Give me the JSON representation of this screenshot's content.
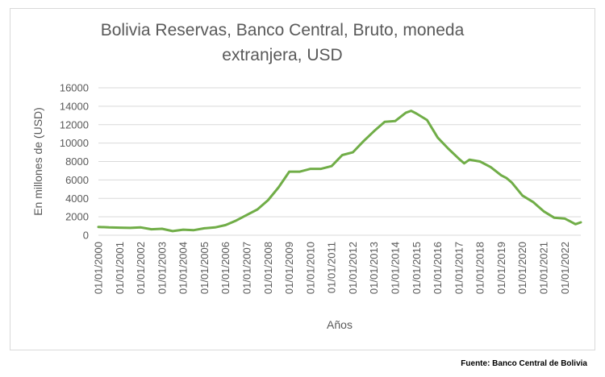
{
  "chart_data": {
    "type": "line",
    "title": "Bolivia Reservas, Banco Central, Bruto, moneda extranjera, USD",
    "xlabel": "Años",
    "ylabel": "En millones de (USD)",
    "ylim": [
      0,
      16000
    ],
    "yticks": [
      0,
      2000,
      4000,
      6000,
      8000,
      10000,
      12000,
      14000,
      16000
    ],
    "xlim": [
      2000.0,
      2022.75
    ],
    "xticks": [
      "01/01/2000",
      "01/01/2001",
      "01/01/2002",
      "01/01/2003",
      "01/01/2004",
      "01/01/2005",
      "01/01/2006",
      "01/01/2007",
      "01/01/2008",
      "01/01/2009",
      "01/01/2010",
      "01/01/2011",
      "01/01/2012",
      "01/01/2013",
      "01/01/2014",
      "01/01/2015",
      "01/01/2016",
      "01/01/2017",
      "01/01/2018",
      "01/01/2019",
      "01/01/2020",
      "01/01/2021",
      "01/01/2022"
    ],
    "grid": true,
    "legend": "none",
    "series": [
      {
        "color": "#70ad47",
        "x": [
          "01/01/2000",
          "01/07/2000",
          "01/01/2001",
          "01/07/2001",
          "01/01/2002",
          "01/07/2002",
          "01/01/2003",
          "01/07/2003",
          "01/01/2004",
          "01/07/2004",
          "01/01/2005",
          "01/07/2005",
          "01/01/2006",
          "01/07/2006",
          "01/01/2007",
          "01/07/2007",
          "01/01/2008",
          "01/07/2008",
          "01/01/2009",
          "01/07/2009",
          "01/01/2010",
          "01/07/2010",
          "01/01/2011",
          "01/07/2011",
          "01/01/2012",
          "01/07/2012",
          "01/01/2013",
          "01/07/2013",
          "01/01/2014",
          "01/07/2014",
          "01/10/2014",
          "01/01/2015",
          "01/07/2015",
          "01/01/2016",
          "01/07/2016",
          "01/01/2017",
          "01/04/2017",
          "01/07/2017",
          "01/10/2017",
          "01/01/2018",
          "01/07/2018",
          "01/01/2019",
          "01/04/2019",
          "01/07/2019",
          "01/01/2020",
          "01/07/2020",
          "01/01/2021",
          "01/07/2021",
          "01/01/2022",
          "01/04/2022",
          "01/07/2022",
          "01/10/2022"
        ],
        "values": [
          900,
          850,
          820,
          800,
          850,
          650,
          700,
          450,
          600,
          550,
          750,
          850,
          1100,
          1600,
          2200,
          2800,
          3800,
          5200,
          6900,
          6900,
          7200,
          7200,
          7500,
          8700,
          9000,
          10200,
          11300,
          12300,
          12400,
          13300,
          13500,
          13200,
          12500,
          10600,
          9400,
          8300,
          7800,
          8200,
          8100,
          8000,
          7400,
          6500,
          6200,
          5700,
          4300,
          3600,
          2600,
          1900,
          1800,
          1500,
          1200,
          1400
        ]
      }
    ]
  },
  "source": "Fuente: Banco Central de Bolivia"
}
